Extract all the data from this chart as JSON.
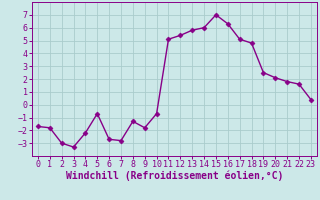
{
  "x": [
    0,
    1,
    2,
    3,
    4,
    5,
    6,
    7,
    8,
    9,
    10,
    11,
    12,
    13,
    14,
    15,
    16,
    17,
    18,
    19,
    20,
    21,
    22,
    23
  ],
  "y": [
    -1.7,
    -1.8,
    -3.0,
    -3.3,
    -2.2,
    -0.7,
    -2.7,
    -2.8,
    -1.3,
    -1.8,
    -0.7,
    5.1,
    5.4,
    5.8,
    6.0,
    7.0,
    6.3,
    5.1,
    4.8,
    2.5,
    2.1,
    1.8,
    1.6,
    0.4
  ],
  "line_color": "#880088",
  "marker": "D",
  "marker_size": 2.5,
  "linewidth": 1.0,
  "xlabel": "Windchill (Refroidissement éolien,°C)",
  "xlabel_fontsize": 7,
  "bg_color": "#cce8e8",
  "grid_color": "#aacccc",
  "ylim": [
    -4,
    8
  ],
  "xlim": [
    -0.5,
    23.5
  ],
  "yticks": [
    -3,
    -2,
    -1,
    0,
    1,
    2,
    3,
    4,
    5,
    6,
    7
  ],
  "xticks": [
    0,
    1,
    2,
    3,
    4,
    5,
    6,
    7,
    8,
    9,
    10,
    11,
    12,
    13,
    14,
    15,
    16,
    17,
    18,
    19,
    20,
    21,
    22,
    23
  ],
  "tick_fontsize": 6,
  "title": ""
}
